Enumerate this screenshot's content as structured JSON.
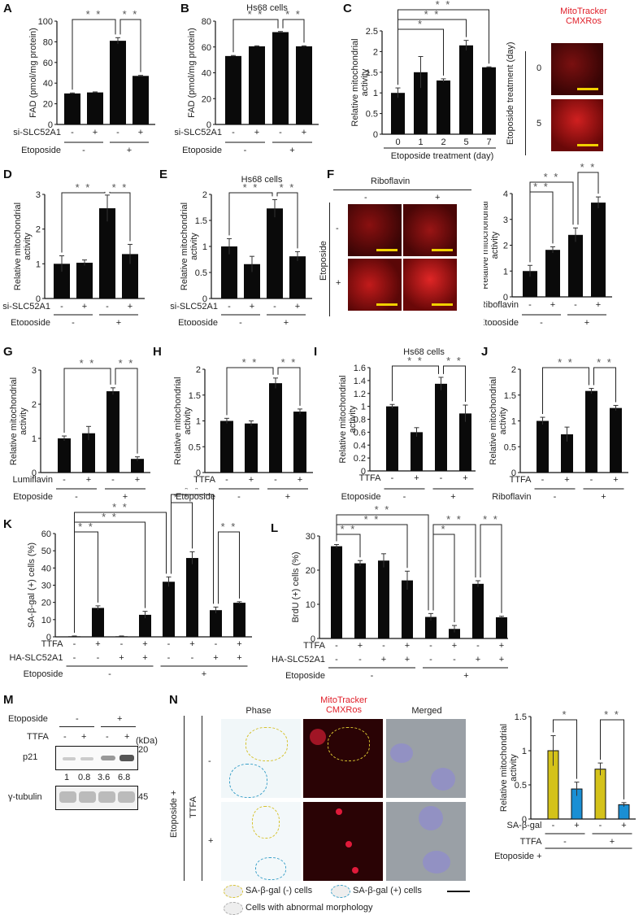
{
  "figure": {
    "panel_labels": [
      "A",
      "B",
      "C",
      "D",
      "E",
      "F",
      "G",
      "H",
      "I",
      "J",
      "K",
      "L",
      "M",
      "N"
    ],
    "micrograph_titles": {
      "C": [
        "MitoTracker",
        "CMXRos"
      ],
      "C_ylabel": "Etoposide treatment (day)",
      "C_rows": [
        "0",
        "5"
      ],
      "F_header": "Riboflavin",
      "F_cols": [
        "-",
        "+"
      ],
      "F_ylabel": "Etoposide",
      "F_rows": [
        "-",
        "+"
      ],
      "N_cols": [
        "Phase",
        "MitoTracker CMXRos",
        "Merged"
      ],
      "N_outer_label": "Etoposide +",
      "N_inner_label": "TTFA",
      "N_rows": [
        "-",
        "+"
      ],
      "N_legend": [
        "SA-β-gal (-) cells",
        "SA-β-gal (+) cells",
        "Cells with abnormal morphology"
      ]
    },
    "western_M": {
      "etoposide_label": "Etoposide",
      "etoposide_groups": [
        "-",
        "+"
      ],
      "ttfa_label": "TTFA",
      "ttfa_lanes": [
        "-",
        "+",
        "-",
        "+"
      ],
      "kda_label": "(kDa)",
      "bands": [
        {
          "name": "p21",
          "marker": "20",
          "intensity": [
            0.15,
            0.15,
            0.55,
            0.9
          ]
        },
        {
          "name": "γ-tubulin",
          "marker": "45",
          "intensity": [
            0.3,
            0.3,
            0.3,
            0.3
          ]
        }
      ],
      "quantification": [
        "1",
        "0.8",
        "3.6",
        "6.8"
      ]
    }
  },
  "chart_data": [
    {
      "id": "A",
      "type": "bar",
      "title": "",
      "subtitle": "",
      "ylabel": "FAD (pmol/mg protein)",
      "ylim": [
        0,
        100
      ],
      "yticks": [
        0,
        20,
        40,
        60,
        80,
        100
      ],
      "categories": [
        "1",
        "2",
        "3",
        "4"
      ],
      "values": [
        30,
        31,
        81,
        47
      ],
      "errors": [
        0.5,
        0.5,
        3,
        0.5
      ],
      "rows": [
        {
          "label": "si-SLC52A1",
          "values": [
            "-",
            "+",
            "-",
            "+"
          ]
        },
        {
          "label": "Etoposide",
          "groups": [
            "-",
            "+"
          ],
          "span": 2
        }
      ],
      "sig": [
        {
          "a": 0,
          "b": 2,
          "label": "**",
          "level": 1
        },
        {
          "a": 2,
          "b": 3,
          "label": "**",
          "level": 1
        }
      ]
    },
    {
      "id": "B",
      "type": "bar",
      "title": "Hs68 cells",
      "ylabel": "FAD (pmol/mg protein)",
      "ylim": [
        0,
        80
      ],
      "yticks": [
        0,
        20,
        40,
        60,
        80
      ],
      "categories": [
        "1",
        "2",
        "3",
        "4"
      ],
      "values": [
        53,
        60.5,
        71.5,
        60.5
      ],
      "errors": [
        0.4,
        0.4,
        0.5,
        0.4
      ],
      "rows": [
        {
          "label": "si-SLC52A1",
          "values": [
            "-",
            "+",
            "-",
            "+"
          ]
        },
        {
          "label": "Etoposide",
          "groups": [
            "-",
            "+"
          ],
          "span": 2
        }
      ],
      "sig": [
        {
          "a": 0,
          "b": 2,
          "label": "**",
          "level": 1
        },
        {
          "a": 2,
          "b": 3,
          "label": "**",
          "level": 1
        }
      ]
    },
    {
      "id": "C",
      "type": "bar",
      "title": "",
      "ylabel": "Relative mitochondrial activity",
      "ylim": [
        0,
        2.5
      ],
      "yticks": [
        0,
        0.5,
        1,
        1.5,
        2,
        2.5
      ],
      "categories": [
        "0",
        "1",
        "2",
        "5",
        "7"
      ],
      "values": [
        1.0,
        1.5,
        1.3,
        2.15,
        1.62
      ],
      "errors": [
        0.12,
        0.38,
        0.04,
        0.12,
        0.01
      ],
      "xlabel": "Etoposide treatment (day)",
      "sig": [
        {
          "a": 0,
          "b": 2,
          "label": "*",
          "level": 1
        },
        {
          "a": 0,
          "b": 3,
          "label": "**",
          "level": 2
        },
        {
          "a": 0,
          "b": 4,
          "label": "**",
          "level": 3
        }
      ]
    },
    {
      "id": "D",
      "type": "bar",
      "ylabel": "Relative mitochondrial activity",
      "ylim": [
        0,
        3
      ],
      "yticks": [
        0,
        1,
        2,
        3
      ],
      "categories": [
        "1",
        "2",
        "3",
        "4"
      ],
      "values": [
        1.0,
        1.03,
        2.6,
        1.28
      ],
      "errors": [
        0.23,
        0.08,
        0.38,
        0.28
      ],
      "rows": [
        {
          "label": "si-SLC52A1",
          "values": [
            "-",
            "+",
            "-",
            "+"
          ]
        },
        {
          "label": "Etoposide",
          "groups": [
            "-",
            "+"
          ],
          "span": 2
        }
      ],
      "sig": [
        {
          "a": 0,
          "b": 2,
          "label": "**",
          "level": 1
        },
        {
          "a": 2,
          "b": 3,
          "label": "**",
          "level": 1
        }
      ]
    },
    {
      "id": "E",
      "type": "bar",
      "title": "Hs68 cells",
      "ylabel": "Relative mitochondrial activity",
      "ylim": [
        0,
        2
      ],
      "yticks": [
        0,
        0.5,
        1,
        1.5,
        2
      ],
      "categories": [
        "1",
        "2",
        "3",
        "4"
      ],
      "values": [
        1.0,
        0.66,
        1.73,
        0.81
      ],
      "errors": [
        0.15,
        0.15,
        0.17,
        0.09
      ],
      "rows": [
        {
          "label": "si-SLC52A1",
          "values": [
            "-",
            "+",
            "-",
            "+"
          ]
        },
        {
          "label": "Etoposide",
          "groups": [
            "-",
            "+"
          ],
          "span": 2
        }
      ],
      "sig": [
        {
          "a": 0,
          "b": 2,
          "label": "**",
          "level": 1
        },
        {
          "a": 2,
          "b": 3,
          "label": "**",
          "level": 1
        }
      ]
    },
    {
      "id": "F",
      "type": "bar",
      "ylabel": "Relative mitochondrial activity",
      "ylim": [
        0,
        4
      ],
      "yticks": [
        0,
        1,
        2,
        3,
        4
      ],
      "categories": [
        "1",
        "2",
        "3",
        "4"
      ],
      "values": [
        1.0,
        1.82,
        2.4,
        3.65
      ],
      "errors": [
        0.22,
        0.12,
        0.27,
        0.22
      ],
      "rows": [
        {
          "label": "Riboflavin",
          "values": [
            "-",
            "+",
            "-",
            "+"
          ]
        },
        {
          "label": "Etoposide",
          "groups": [
            "-",
            "+"
          ],
          "span": 2
        }
      ],
      "sig": [
        {
          "a": 0,
          "b": 1,
          "label": "**",
          "level": 1
        },
        {
          "a": 0,
          "b": 2,
          "label": "**",
          "level": 2
        },
        {
          "a": 2,
          "b": 3,
          "label": "**",
          "level": 3
        }
      ]
    },
    {
      "id": "G",
      "type": "bar",
      "ylabel": "Relative mitochondrial activity",
      "ylim": [
        0,
        3
      ],
      "yticks": [
        0,
        1,
        2,
        3
      ],
      "categories": [
        "1",
        "2",
        "3",
        "4"
      ],
      "values": [
        1.0,
        1.15,
        2.38,
        0.4
      ],
      "errors": [
        0.07,
        0.2,
        0.1,
        0.06
      ],
      "rows": [
        {
          "label": "Lumiflavin",
          "values": [
            "-",
            "+",
            "-",
            "+"
          ]
        },
        {
          "label": "Etoposide",
          "groups": [
            "-",
            "+"
          ],
          "span": 2
        }
      ],
      "sig": [
        {
          "a": 0,
          "b": 2,
          "label": "**",
          "level": 1
        },
        {
          "a": 2,
          "b": 3,
          "label": "**",
          "level": 1
        }
      ]
    },
    {
      "id": "H",
      "type": "bar",
      "ylabel": "Relative mitochondrial activity",
      "ylim": [
        0,
        2
      ],
      "yticks": [
        0,
        0.5,
        1,
        1.5,
        2
      ],
      "categories": [
        "1",
        "2",
        "3",
        "4"
      ],
      "values": [
        1.0,
        0.95,
        1.73,
        1.18
      ],
      "errors": [
        0.05,
        0.05,
        0.1,
        0.05
      ],
      "rows": [
        {
          "label": "TTFA",
          "values": [
            "-",
            "+",
            "-",
            "+"
          ]
        },
        {
          "label": "Etoposide",
          "groups": [
            "-",
            "+"
          ],
          "span": 2
        }
      ],
      "sig": [
        {
          "a": 0,
          "b": 2,
          "label": "**",
          "level": 1
        },
        {
          "a": 2,
          "b": 3,
          "label": "**",
          "level": 1
        }
      ]
    },
    {
      "id": "I",
      "type": "bar",
      "title": "Hs68 cells",
      "ylabel": "Relative mitochondrial activity",
      "ylim": [
        0,
        1.6
      ],
      "yticks": [
        0,
        0.2,
        0.4,
        0.6,
        0.8,
        1,
        1.2,
        1.4,
        1.6
      ],
      "categories": [
        "1",
        "2",
        "3",
        "4"
      ],
      "values": [
        1.0,
        0.6,
        1.35,
        0.89
      ],
      "errors": [
        0.03,
        0.07,
        0.1,
        0.13
      ],
      "rows": [
        {
          "label": "TTFA",
          "values": [
            "-",
            "+",
            "-",
            "+"
          ]
        },
        {
          "label": "Etoposide",
          "groups": [
            "-",
            "+"
          ],
          "span": 2
        }
      ],
      "sig": [
        {
          "a": 0,
          "b": 2,
          "label": "**",
          "level": 1
        },
        {
          "a": 2,
          "b": 3,
          "label": "**",
          "level": 1
        }
      ]
    },
    {
      "id": "J",
      "type": "bar",
      "ylabel": "Relative mitochondrial activity",
      "ylim": [
        0,
        2
      ],
      "yticks": [
        0,
        0.5,
        1,
        1.5,
        2
      ],
      "categories": [
        "1",
        "2",
        "3",
        "4"
      ],
      "values": [
        1.0,
        0.74,
        1.58,
        1.25
      ],
      "errors": [
        0.07,
        0.14,
        0.05,
        0.05
      ],
      "rows": [
        {
          "label": "TTFA",
          "values": [
            "-",
            "+",
            "-",
            "+"
          ]
        },
        {
          "label": "Riboflavin",
          "groups": [
            "-",
            "+"
          ],
          "span": 2
        }
      ],
      "sig": [
        {
          "a": 0,
          "b": 2,
          "label": "**",
          "level": 1
        },
        {
          "a": 2,
          "b": 3,
          "label": "**",
          "level": 1
        }
      ]
    },
    {
      "id": "K",
      "type": "bar",
      "ylabel": "SA-β-gal (+) cells (%)",
      "ylim": [
        0,
        60
      ],
      "yticks": [
        0,
        10,
        20,
        30,
        40,
        50,
        60
      ],
      "categories": [
        "1",
        "2",
        "3",
        "4",
        "5",
        "6",
        "7",
        "8"
      ],
      "values": [
        0.3,
        16.8,
        0.3,
        12.8,
        32,
        45.8,
        15.5,
        19.8
      ],
      "errors": [
        0.2,
        1.2,
        0.2,
        2,
        2.8,
        3.6,
        1.8,
        0.6
      ],
      "rows": [
        {
          "label": "TTFA",
          "values": [
            "-",
            "+",
            "-",
            "+",
            "-",
            "+",
            "-",
            "+"
          ]
        },
        {
          "label": "HA-SLC52A1",
          "values": [
            "-",
            "-",
            "+",
            "+",
            "-",
            "-",
            "+",
            "+"
          ]
        },
        {
          "label": "Etoposide",
          "groups": [
            "-",
            "+"
          ],
          "span": 4
        }
      ],
      "sig": [
        {
          "a": 0,
          "b": 1,
          "label": "**",
          "level": 1
        },
        {
          "a": 0,
          "b": 3,
          "label": "**",
          "level": 2
        },
        {
          "a": 0,
          "b": 4,
          "label": "**",
          "level": 3
        },
        {
          "a": 4,
          "b": 5,
          "label": "**",
          "level": 4
        },
        {
          "a": 4,
          "b": 6,
          "label": "**",
          "level": 5
        },
        {
          "a": 6,
          "b": 7,
          "label": "**",
          "level": 1
        }
      ]
    },
    {
      "id": "L",
      "type": "bar",
      "ylabel": "BrdU (+) cells (%)",
      "ylim": [
        0,
        30
      ],
      "yticks": [
        0,
        10,
        20,
        30
      ],
      "categories": [
        "1",
        "2",
        "3",
        "4",
        "5",
        "6",
        "7",
        "8"
      ],
      "values": [
        27,
        22,
        22.8,
        17,
        6.3,
        2.8,
        16,
        6.2
      ],
      "errors": [
        0.5,
        0.8,
        2,
        2.7,
        1,
        1,
        0.9,
        0.3
      ],
      "rows": [
        {
          "label": "TTFA",
          "values": [
            "-",
            "+",
            "-",
            "+",
            "-",
            "+",
            "-",
            "+"
          ]
        },
        {
          "label": "HA-SLC52A1",
          "values": [
            "-",
            "-",
            "+",
            "+",
            "-",
            "-",
            "+",
            "+"
          ]
        },
        {
          "label": "Etoposide",
          "groups": [
            "-",
            "+"
          ],
          "span": 4
        }
      ],
      "sig": [
        {
          "a": 0,
          "b": 1,
          "label": "**",
          "level": 1
        },
        {
          "a": 0,
          "b": 3,
          "label": "**",
          "level": 2
        },
        {
          "a": 0,
          "b": 4,
          "label": "**",
          "level": 3
        },
        {
          "a": 4,
          "b": 5,
          "label": "*",
          "level": 1
        },
        {
          "a": 4,
          "b": 6,
          "label": "**",
          "level": 2
        },
        {
          "a": 6,
          "b": 7,
          "label": "**",
          "level": 2
        }
      ]
    },
    {
      "id": "N",
      "type": "bar",
      "ylabel": "Relative mitochondrial activity",
      "ylim": [
        0,
        1.5
      ],
      "yticks": [
        0,
        0.5,
        1,
        1.5
      ],
      "categories": [
        "1",
        "2",
        "3",
        "4"
      ],
      "values": [
        1.0,
        0.44,
        0.73,
        0.21
      ],
      "errors": [
        0.22,
        0.1,
        0.09,
        0.03
      ],
      "colors": [
        "#d4c21a",
        "#1a8fd4",
        "#d4c21a",
        "#1a8fd4"
      ],
      "rows": [
        {
          "label": "SA-β-gal",
          "values": [
            "-",
            "+",
            "-",
            "+"
          ]
        },
        {
          "label": "TTFA",
          "groups": [
            "-",
            "+"
          ],
          "span": 2
        },
        {
          "label": "Etoposide +",
          "groups": [
            ""
          ],
          "span": 4
        }
      ],
      "sig": [
        {
          "a": 0,
          "b": 1,
          "label": "*",
          "level": 1
        },
        {
          "a": 2,
          "b": 3,
          "label": "**",
          "level": 1
        }
      ]
    }
  ]
}
